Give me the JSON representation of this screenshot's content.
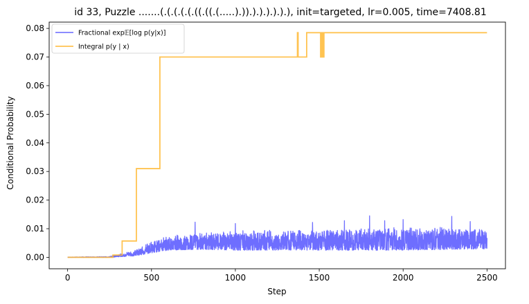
{
  "chart_data": {
    "type": "line",
    "title": "id 33, Puzzle .......(.(.(.(.(.((.((.(.....).)).).).).).).), init=targeted, lr=0.005, time=7408.81",
    "xlabel": "Step",
    "ylabel": "Conditional Probability",
    "xlim": [
      -110,
      2610
    ],
    "ylim": [
      -0.004,
      0.0822
    ],
    "x_ticks": [
      0,
      500,
      1000,
      1500,
      2000,
      2500
    ],
    "x_tick_labels": [
      "0",
      "500",
      "1000",
      "1500",
      "2000",
      "2500"
    ],
    "y_ticks": [
      0.0,
      0.01,
      0.02,
      0.03,
      0.04,
      0.05,
      0.06,
      0.07,
      0.08
    ],
    "y_tick_labels": [
      "0.00",
      "0.01",
      "0.02",
      "0.03",
      "0.04",
      "0.05",
      "0.06",
      "0.07",
      "0.08"
    ],
    "grid": false,
    "legend_position": "top-left",
    "series": [
      {
        "name": "Fractional exp𝔼[log p(y|x)]",
        "color": "#6666ff",
        "style": "noisy",
        "envelope": [
          {
            "x": 0,
            "lo": 0.0,
            "hi": 0.0001
          },
          {
            "x": 250,
            "lo": 0.0,
            "hi": 0.0003
          },
          {
            "x": 400,
            "lo": 0.0005,
            "hi": 0.0025
          },
          {
            "x": 500,
            "lo": 0.0015,
            "hi": 0.0055
          },
          {
            "x": 600,
            "lo": 0.0025,
            "hi": 0.0075
          },
          {
            "x": 800,
            "lo": 0.0028,
            "hi": 0.0085
          },
          {
            "x": 1000,
            "lo": 0.0025,
            "hi": 0.0095
          },
          {
            "x": 1500,
            "lo": 0.0025,
            "hi": 0.0095
          },
          {
            "x": 2000,
            "lo": 0.0025,
            "hi": 0.0105
          },
          {
            "x": 2500,
            "lo": 0.003,
            "hi": 0.0105
          }
        ],
        "spikes": [
          {
            "x": 760,
            "y": 0.0123
          },
          {
            "x": 1000,
            "y": 0.0118
          },
          {
            "x": 1460,
            "y": 0.0122
          },
          {
            "x": 1650,
            "y": 0.0128
          },
          {
            "x": 1800,
            "y": 0.0145
          },
          {
            "x": 1890,
            "y": 0.0128
          },
          {
            "x": 2000,
            "y": 0.0132
          },
          {
            "x": 2290,
            "y": 0.0143
          },
          {
            "x": 2400,
            "y": 0.0125
          }
        ]
      },
      {
        "name": "Integral p(y | x)",
        "color": "#ffb833",
        "style": "step",
        "x": [
          0,
          270,
          270,
          325,
          325,
          410,
          410,
          550,
          550,
          1370,
          1370,
          1374,
          1374,
          1425,
          1425,
          1508,
          1508,
          1512,
          1512,
          1516,
          1516,
          1520,
          1520,
          1524,
          1524,
          1528,
          1528,
          1532,
          1532,
          2500
        ],
        "values": [
          0.0,
          0.0,
          0.0008,
          0.0008,
          0.0057,
          0.0057,
          0.031,
          0.031,
          0.07,
          0.07,
          0.0785,
          0.0785,
          0.07,
          0.07,
          0.0785,
          0.0785,
          0.07,
          0.07,
          0.0785,
          0.0785,
          0.07,
          0.07,
          0.0785,
          0.0785,
          0.07,
          0.07,
          0.0785,
          0.0785,
          0.0785,
          0.0785
        ]
      }
    ]
  }
}
